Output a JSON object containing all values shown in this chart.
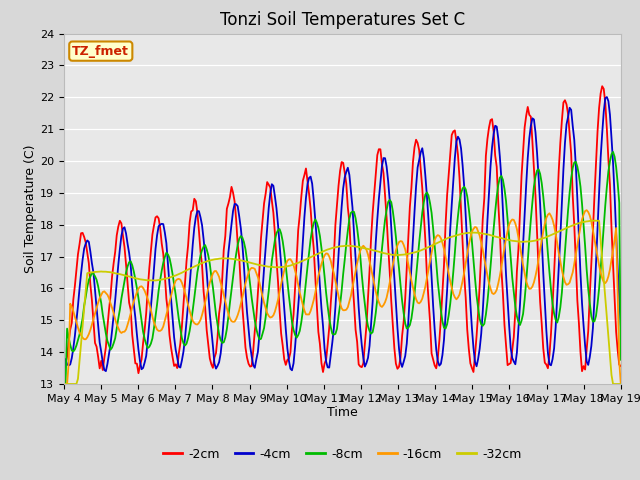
{
  "title": "Tonzi Soil Temperatures Set C",
  "xlabel": "Time",
  "ylabel": "Soil Temperature (C)",
  "ylim": [
    13.0,
    24.0
  ],
  "yticks": [
    13.0,
    14.0,
    15.0,
    16.0,
    17.0,
    18.0,
    19.0,
    20.0,
    21.0,
    22.0,
    23.0,
    24.0
  ],
  "xtick_labels": [
    "May 4",
    "May 5",
    "May 6",
    "May 7",
    "May 8",
    "May 9",
    "May 10",
    "May 11",
    "May 12",
    "May 13",
    "May 14",
    "May 15",
    "May 16",
    "May 17",
    "May 18",
    "May 19"
  ],
  "series_colors": [
    "#ff0000",
    "#0000cc",
    "#00bb00",
    "#ff9900",
    "#cccc00"
  ],
  "series_labels": [
    "-2cm",
    "-4cm",
    "-8cm",
    "-16cm",
    "-32cm"
  ],
  "plot_bg_color": "#e8e8e8",
  "fig_bg_color": "#d8d8d8",
  "annotation_text": "TZ_fmet",
  "annotation_bg": "#ffffcc",
  "annotation_border": "#cc8800",
  "title_fontsize": 12,
  "axis_label_fontsize": 9,
  "tick_fontsize": 8,
  "legend_fontsize": 9
}
